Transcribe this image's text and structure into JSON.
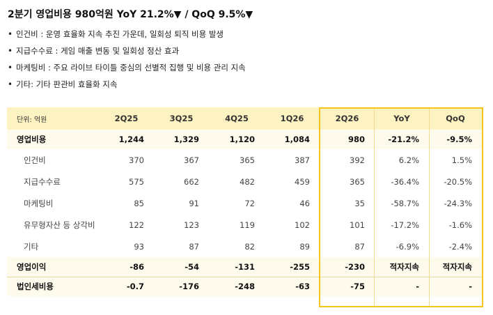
{
  "title": "2분기 영업비용 980억원 YoY 21.2%▼ / QoQ 9.5%▼",
  "bullets": [
    "인건비 : 운영 효율화 지속 추진 가운데, 일회성 퇴직 비용 발생",
    "지급수수료 : 게임 매출 변동 및 일회성 정산 효과",
    "마케팅비 : 주요 라이브 타이틀 중심의 선별적 집행 및 비용 관리 지속",
    "기타: 기타 판관비 효율화 지속"
  ],
  "table": {
    "unit_label": "단위: 억원",
    "headers": [
      "2Q25",
      "3Q25",
      "4Q25",
      "1Q26",
      "2Q26",
      "YoY",
      "QoQ"
    ],
    "highlight_color": "#f7c31c",
    "header_bg": "#fdf3c2",
    "rows": [
      {
        "label": "영업비용",
        "values": [
          "1,244",
          "1,329",
          "1,120",
          "1,084",
          "980",
          "-21.2%",
          "-9.5%"
        ]
      },
      {
        "label": "인건비",
        "values": [
          "370",
          "367",
          "365",
          "387",
          "392",
          "6.2%",
          "1.5%"
        ]
      },
      {
        "label": "지급수수료",
        "values": [
          "575",
          "662",
          "482",
          "459",
          "365",
          "-36.4%",
          "-20.5%"
        ]
      },
      {
        "label": "마케팅비",
        "values": [
          "85",
          "91",
          "72",
          "46",
          "35",
          "-58.7%",
          "-24.3%"
        ]
      },
      {
        "label": "유무형자산 등 상각비",
        "values": [
          "122",
          "123",
          "119",
          "102",
          "101",
          "-17.2%",
          "-1.6%"
        ]
      },
      {
        "label": "기타",
        "values": [
          "93",
          "87",
          "82",
          "89",
          "87",
          "-6.9%",
          "-2.4%"
        ]
      },
      {
        "label": "영업이익",
        "values": [
          "-86",
          "-54",
          "-131",
          "-255",
          "-230",
          "적자지속",
          "적자지속"
        ]
      },
      {
        "label": "법인세비용",
        "values": [
          "-0.7",
          "-176",
          "-248",
          "-63",
          "-75",
          "-",
          "-"
        ]
      }
    ]
  }
}
